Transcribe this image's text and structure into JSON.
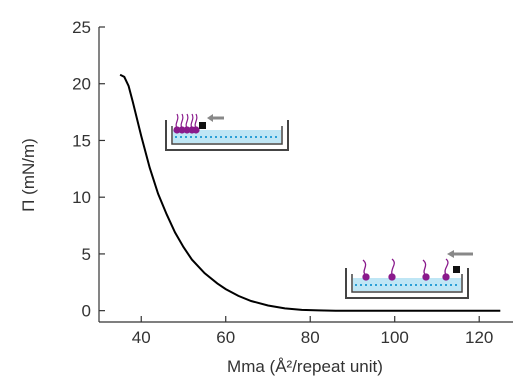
{
  "chart_data": {
    "type": "line",
    "xlabel": "Mma (Å²/repeat unit)",
    "ylabel": "Π (mN/m)",
    "xlim": [
      30,
      128
    ],
    "ylim": [
      -1,
      25
    ],
    "x_ticks": [
      40,
      60,
      80,
      100,
      120
    ],
    "y_ticks": [
      0,
      5,
      10,
      15,
      20,
      25
    ],
    "grid": false,
    "series": [
      {
        "color": "#000000",
        "x": [
          35,
          36,
          37,
          38,
          39,
          40,
          42,
          44,
          46,
          48,
          50,
          52,
          55,
          58,
          60,
          63,
          66,
          70,
          74,
          78,
          82,
          86,
          90,
          100,
          110,
          120,
          125
        ],
        "y": [
          20.8,
          20.6,
          19.8,
          18.4,
          16.9,
          15.4,
          12.6,
          10.3,
          8.5,
          6.9,
          5.6,
          4.5,
          3.3,
          2.4,
          1.9,
          1.3,
          0.85,
          0.45,
          0.2,
          0.07,
          0.02,
          0,
          0,
          0,
          0,
          0,
          0
        ]
      }
    ],
    "insets": [
      {
        "description_icon": "trough-compressed-monolayer-icon"
      },
      {
        "description_icon": "trough-expanded-monolayer-icon"
      }
    ]
  }
}
